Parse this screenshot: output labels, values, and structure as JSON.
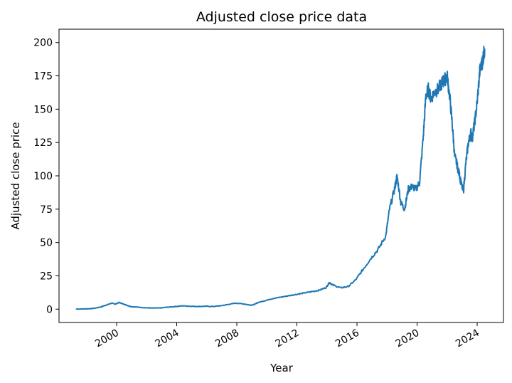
{
  "chart_data": {
    "type": "line",
    "title": "Adjusted close price data",
    "xlabel": "Year",
    "ylabel": "Adjusted close price",
    "xlim": [
      "1996-03",
      "2025-10"
    ],
    "ylim": [
      -10,
      210
    ],
    "xticks": [
      "2000",
      "2004",
      "2008",
      "2012",
      "2016",
      "2020",
      "2024"
    ],
    "yticks": [
      0,
      25,
      50,
      75,
      100,
      125,
      150,
      175,
      200
    ],
    "grid": false,
    "line_color": "#1f77b4",
    "series": [
      {
        "x": [
          "1997-05",
          "1997-12",
          "1998-06",
          "1998-12",
          "1999-03",
          "1999-06",
          "1999-09",
          "1999-12",
          "2000-03",
          "2000-06",
          "2000-09",
          "2000-12",
          "2001-06",
          "2001-12",
          "2002-06",
          "2002-12",
          "2003-06",
          "2003-12",
          "2004-06",
          "2004-12",
          "2005-06",
          "2005-12",
          "2006-06",
          "2006-12",
          "2007-06",
          "2007-12",
          "2008-06",
          "2008-12",
          "2009-03",
          "2009-06",
          "2009-12",
          "2010-06",
          "2010-12",
          "2011-06",
          "2011-12",
          "2012-06",
          "2012-12",
          "2013-06",
          "2013-12",
          "2014-03",
          "2014-06",
          "2014-12",
          "2015-06",
          "2015-12",
          "2016-06",
          "2016-12",
          "2017-06",
          "2017-12",
          "2018-03",
          "2018-07",
          "2018-09",
          "2018-12",
          "2019-03",
          "2019-06",
          "2019-09",
          "2019-12",
          "2020-03",
          "2020-06",
          "2020-08",
          "2020-10",
          "2020-12",
          "2021-03",
          "2021-06",
          "2021-09",
          "2021-11",
          "2022-01",
          "2022-03",
          "2022-05",
          "2022-07",
          "2022-09",
          "2022-11",
          "2022-12",
          "2023-02",
          "2023-04",
          "2023-06",
          "2023-08",
          "2023-09",
          "2023-11",
          "2024-01",
          "2024-03",
          "2024-05",
          "2024-06",
          "2024-07"
        ],
        "y": [
          0.1,
          0.2,
          0.5,
          1.5,
          2.5,
          3.5,
          4.5,
          3.8,
          5.0,
          4.0,
          3.0,
          2.0,
          1.5,
          1.0,
          0.8,
          0.9,
          1.5,
          2.0,
          2.5,
          2.2,
          2.0,
          2.2,
          2.0,
          2.5,
          3.5,
          4.5,
          4.0,
          3.0,
          3.5,
          5.0,
          6.5,
          8.0,
          9.0,
          10.0,
          11.0,
          12.0,
          13.0,
          14.0,
          16.0,
          20.0,
          18.0,
          16.0,
          17.0,
          22.0,
          30.0,
          38.0,
          45.0,
          55.0,
          75.0,
          90.0,
          100.0,
          80.0,
          75.0,
          90.0,
          92.0,
          90.0,
          95.0,
          130.0,
          160.0,
          165.0,
          158.0,
          163.0,
          165.0,
          170.0,
          172.0,
          175.0,
          160.0,
          140.0,
          115.0,
          108.0,
          100.0,
          95.0,
          88.0,
          110.0,
          125.0,
          132.0,
          128.0,
          140.0,
          155.0,
          178.0,
          185.0,
          190.0,
          195.0
        ]
      }
    ]
  }
}
